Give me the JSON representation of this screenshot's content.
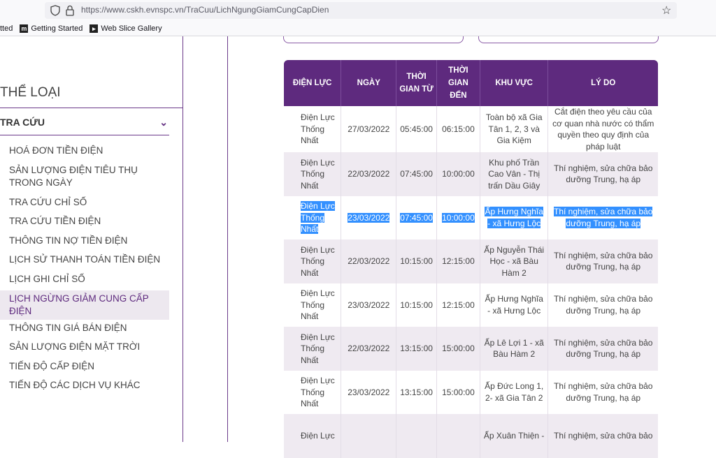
{
  "browser": {
    "url": "https://www.cskh.evnspc.vn/TraCuu/LichNgungGiamCungCapDien",
    "bookmarks": [
      {
        "label": "tted",
        "icon": "none"
      },
      {
        "label": "Getting Started",
        "icon": "firefox-m-icon"
      },
      {
        "label": "Web Slice Gallery",
        "icon": "web-slice-icon"
      }
    ]
  },
  "sidebar": {
    "title": "THỂ LOẠI",
    "group_label": "TRA CỨU",
    "items": [
      {
        "label": "HOÁ ĐƠN TIỀN ĐIỆN"
      },
      {
        "label": "SẢN LƯỢNG ĐIỆN TIÊU THỤ TRONG NGÀY"
      },
      {
        "label": "TRA CỨU CHỈ SỐ"
      },
      {
        "label": "TRA CỨU TIỀN ĐIỆN"
      },
      {
        "label": "THÔNG TIN NỢ TIỀN ĐIỆN"
      },
      {
        "label": "LỊCH SỬ THANH TOÁN TIỀN ĐIỆN"
      },
      {
        "label": "LỊCH GHI CHỈ SỐ"
      },
      {
        "label": "LỊCH NGỪNG GIẢM CUNG CẤP ĐIỆN"
      },
      {
        "label": "THÔNG TIN GIÁ BÁN ĐIỆN"
      },
      {
        "label": "SẢN LƯỢNG ĐIỆN MẶT TRỜI"
      },
      {
        "label": "TIẾN ĐỘ CẤP ĐIỆN"
      },
      {
        "label": "TIẾN ĐỘ CÁC DỊCH VỤ KHÁC"
      }
    ]
  },
  "table": {
    "headers": [
      "ĐIỆN LỰC",
      "NGÀY",
      "THỜI GIAN TỪ",
      "THỜI GIAN ĐẾN",
      "KHU VỰC",
      "LÝ DO"
    ],
    "rows": [
      {
        "dien_luc": "Điện Lực Thống Nhất",
        "ngay": "27/03/2022",
        "tu": "05:45:00",
        "den": "06:15:00",
        "khu_vuc": "Toàn bộ xã Gia Tân 1, 2, 3 và Gia Kiệm",
        "ly_do": "Cắt điện theo yêu cầu của cơ quan nhà nước có thẩm quyền theo quy định của pháp luật"
      },
      {
        "dien_luc": "Điện Lực Thống Nhất",
        "ngay": "22/03/2022",
        "tu": "07:45:00",
        "den": "10:00:00",
        "khu_vuc": "Khu phố Trần Cao Vân - Thị trấn Dầu Giây",
        "ly_do": "Thí nghiệm, sửa chữa bảo dưỡng Trung, hạ áp"
      },
      {
        "dien_luc": "Điện Lực Thống Nhất",
        "ngay": "23/03/2022",
        "tu": "07:45:00",
        "den": "10:00:00",
        "khu_vuc": "Ấp Hưng Nghĩa - xã Hưng Lộc",
        "ly_do": "Thí nghiệm, sửa chữa bảo dưỡng Trung, hạ áp"
      },
      {
        "dien_luc": "Điện Lực Thống Nhất",
        "ngay": "22/03/2022",
        "tu": "10:15:00",
        "den": "12:15:00",
        "khu_vuc": "Ấp Nguyễn Thái Học - xã Bàu Hàm 2",
        "ly_do": "Thí nghiệm, sửa chữa bảo dưỡng Trung, hạ áp"
      },
      {
        "dien_luc": "Điện Lực Thống Nhất",
        "ngay": "23/03/2022",
        "tu": "10:15:00",
        "den": "12:15:00",
        "khu_vuc": "Ấp Hưng Nghĩa - xã Hưng Lộc",
        "ly_do": "Thí nghiệm, sửa chữa bảo dưỡng Trung, hạ áp"
      },
      {
        "dien_luc": "Điện Lực Thống Nhất",
        "ngay": "22/03/2022",
        "tu": "13:15:00",
        "den": "15:00:00",
        "khu_vuc": "Ấp Lê Lợi 1 - xã Bàu Hàm 2",
        "ly_do": "Thí nghiệm, sửa chữa bảo dưỡng Trung, hạ áp"
      },
      {
        "dien_luc": "Điện Lực Thống Nhất",
        "ngay": "23/03/2022",
        "tu": "13:15:00",
        "den": "15:00:00",
        "khu_vuc": "Ấp Đức Long 1, 2- xã Gia Tân 2",
        "ly_do": "Thí nghiệm, sửa chữa bảo dưỡng Trung, hạ áp"
      },
      {
        "dien_luc": "Điện Lực",
        "ngay": "",
        "tu": "",
        "den": "",
        "khu_vuc": "Ấp Xuân Thiện -",
        "ly_do": "Thí nghiệm, sửa chữa bảo"
      }
    ]
  },
  "colors": {
    "accent": "#5e2a7e",
    "row_alt": "#efeaf1",
    "selection": "#3390ff"
  }
}
